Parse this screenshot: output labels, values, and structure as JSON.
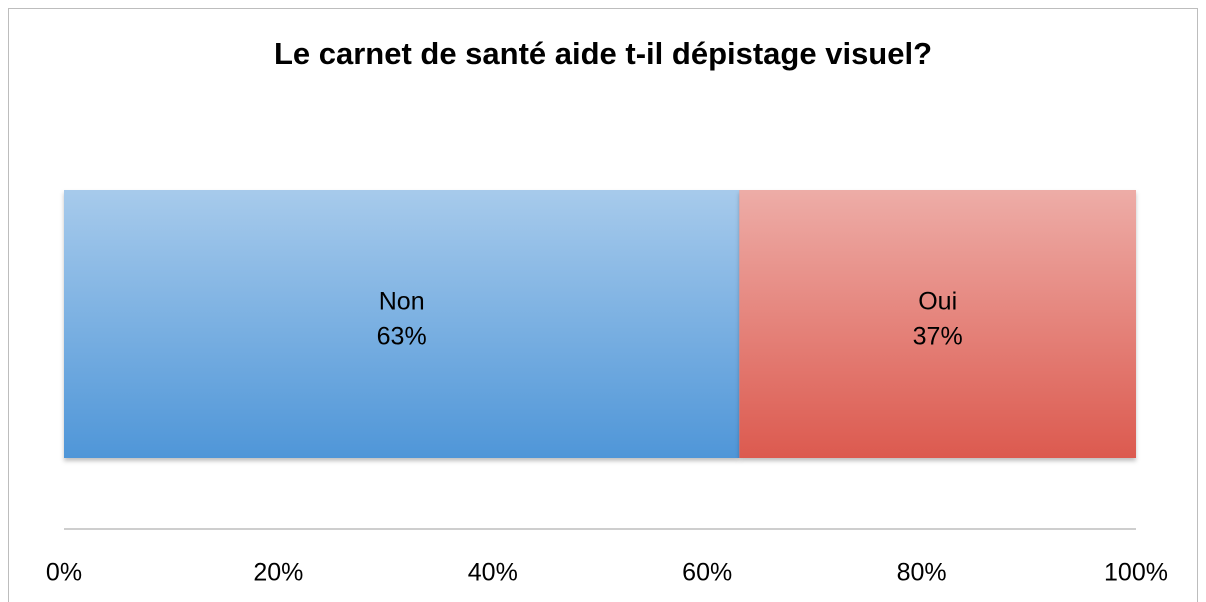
{
  "chart_data": {
    "type": "stacked-bar",
    "orientation": "horizontal",
    "title": "Le carnet de santé aide t-il dépistage visuel?",
    "categories": [
      null
    ],
    "series": [
      {
        "name": "Non",
        "color": "#5096d8",
        "values": [
          63
        ],
        "value_labels": [
          "63%"
        ]
      },
      {
        "name": "Oui",
        "color": "#dc5a4f",
        "values": [
          37
        ],
        "value_labels": [
          "37%"
        ]
      }
    ],
    "xlim": [
      0,
      100
    ],
    "xticks": [
      {
        "value": 0,
        "label": "0%"
      },
      {
        "value": 20,
        "label": "20%"
      },
      {
        "value": 40,
        "label": "40%"
      },
      {
        "value": 60,
        "label": "60%"
      },
      {
        "value": 80,
        "label": "80%"
      },
      {
        "value": 100,
        "label": "100%"
      }
    ],
    "grid": false
  }
}
